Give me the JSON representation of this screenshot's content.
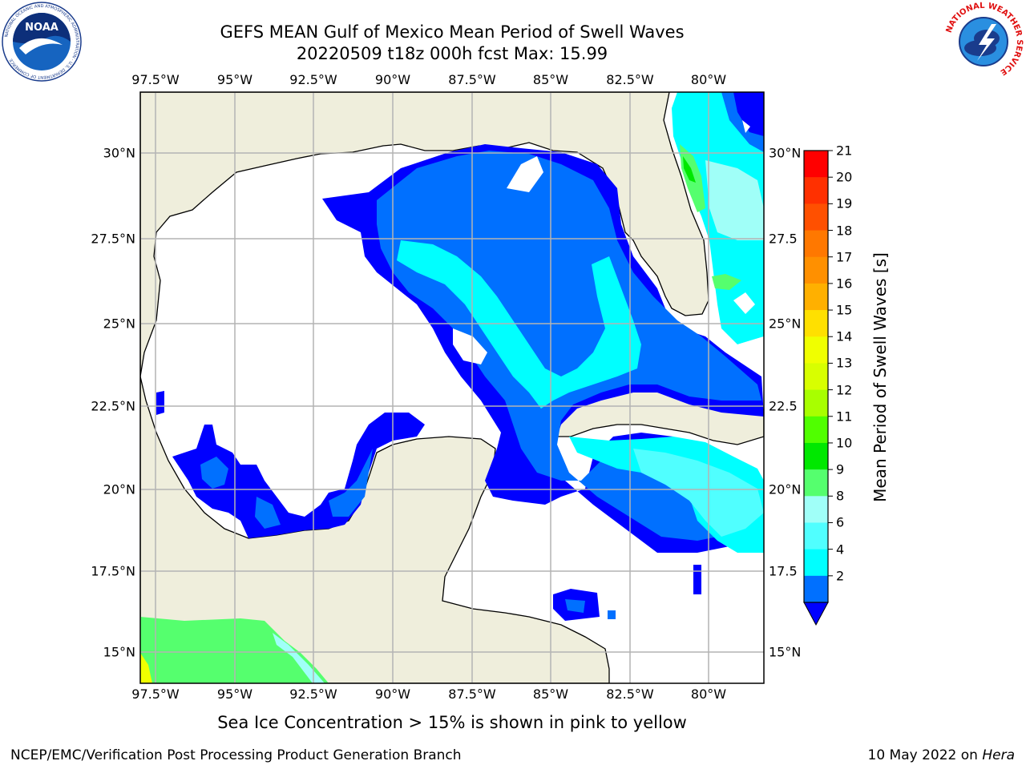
{
  "title": {
    "line1": "GEFS MEAN Gulf of Mexico Mean Period of Swell Waves",
    "line2": "20220509 t18z 000h fcst   Max: 15.99"
  },
  "map": {
    "lon_ticks": [
      "97.5°W",
      "95°W",
      "92.5°W",
      "90°W",
      "87.5°W",
      "85°W",
      "82.5°W",
      "80°W"
    ],
    "lat_ticks_left": [
      "30°N",
      "27.5°N",
      "25°N",
      "22.5°N",
      "20°N",
      "17.5°N",
      "15°N"
    ],
    "lat_ticks_right": [
      "30°N",
      "27.5",
      "25°N",
      "22.5",
      "20°N",
      "17.5",
      "15°N"
    ],
    "extent": {
      "lon_min": -98,
      "lon_max": -78.4,
      "lat_min": 14,
      "lat_max": 31.8
    },
    "land_color": "#efeedc",
    "grid_color": "#b4b4b4"
  },
  "colorbar": {
    "title": "Mean Period of Swell Waves [s]",
    "labels": [
      "21",
      "20",
      "19",
      "18",
      "17",
      "16",
      "15",
      "14",
      "13",
      "12",
      "11",
      "10",
      "9",
      "8",
      "6",
      "4",
      "2"
    ],
    "colors": [
      "#ff0000",
      "#ff3000",
      "#ff5000",
      "#ff7800",
      "#ff9000",
      "#ffb000",
      "#ffe000",
      "#f0ff00",
      "#d8ff00",
      "#a8ff00",
      "#50ff00",
      "#00e800",
      "#55ff6e",
      "#a0fff8",
      "#50ffff",
      "#00ffff",
      "#0070ff"
    ],
    "extend_color": "#0000ff"
  },
  "caption": "Sea Ice Concentration > 15% is shown in pink to yellow",
  "footer": {
    "left": "NCEP/EMC/Verification Post Processing Product Generation Branch",
    "right_prefix": "10 May 2022 on ",
    "right_host": "Hera"
  },
  "logos": {
    "noaa": {
      "text": "NOAA",
      "ring": "NATIONAL OCEANIC AND ATMOSPHERIC ADMINISTRATION · U.S. DEPARTMENT OF COMMERCE"
    },
    "nws": {
      "ring": "NATIONAL WEATHER SERVICE"
    }
  }
}
